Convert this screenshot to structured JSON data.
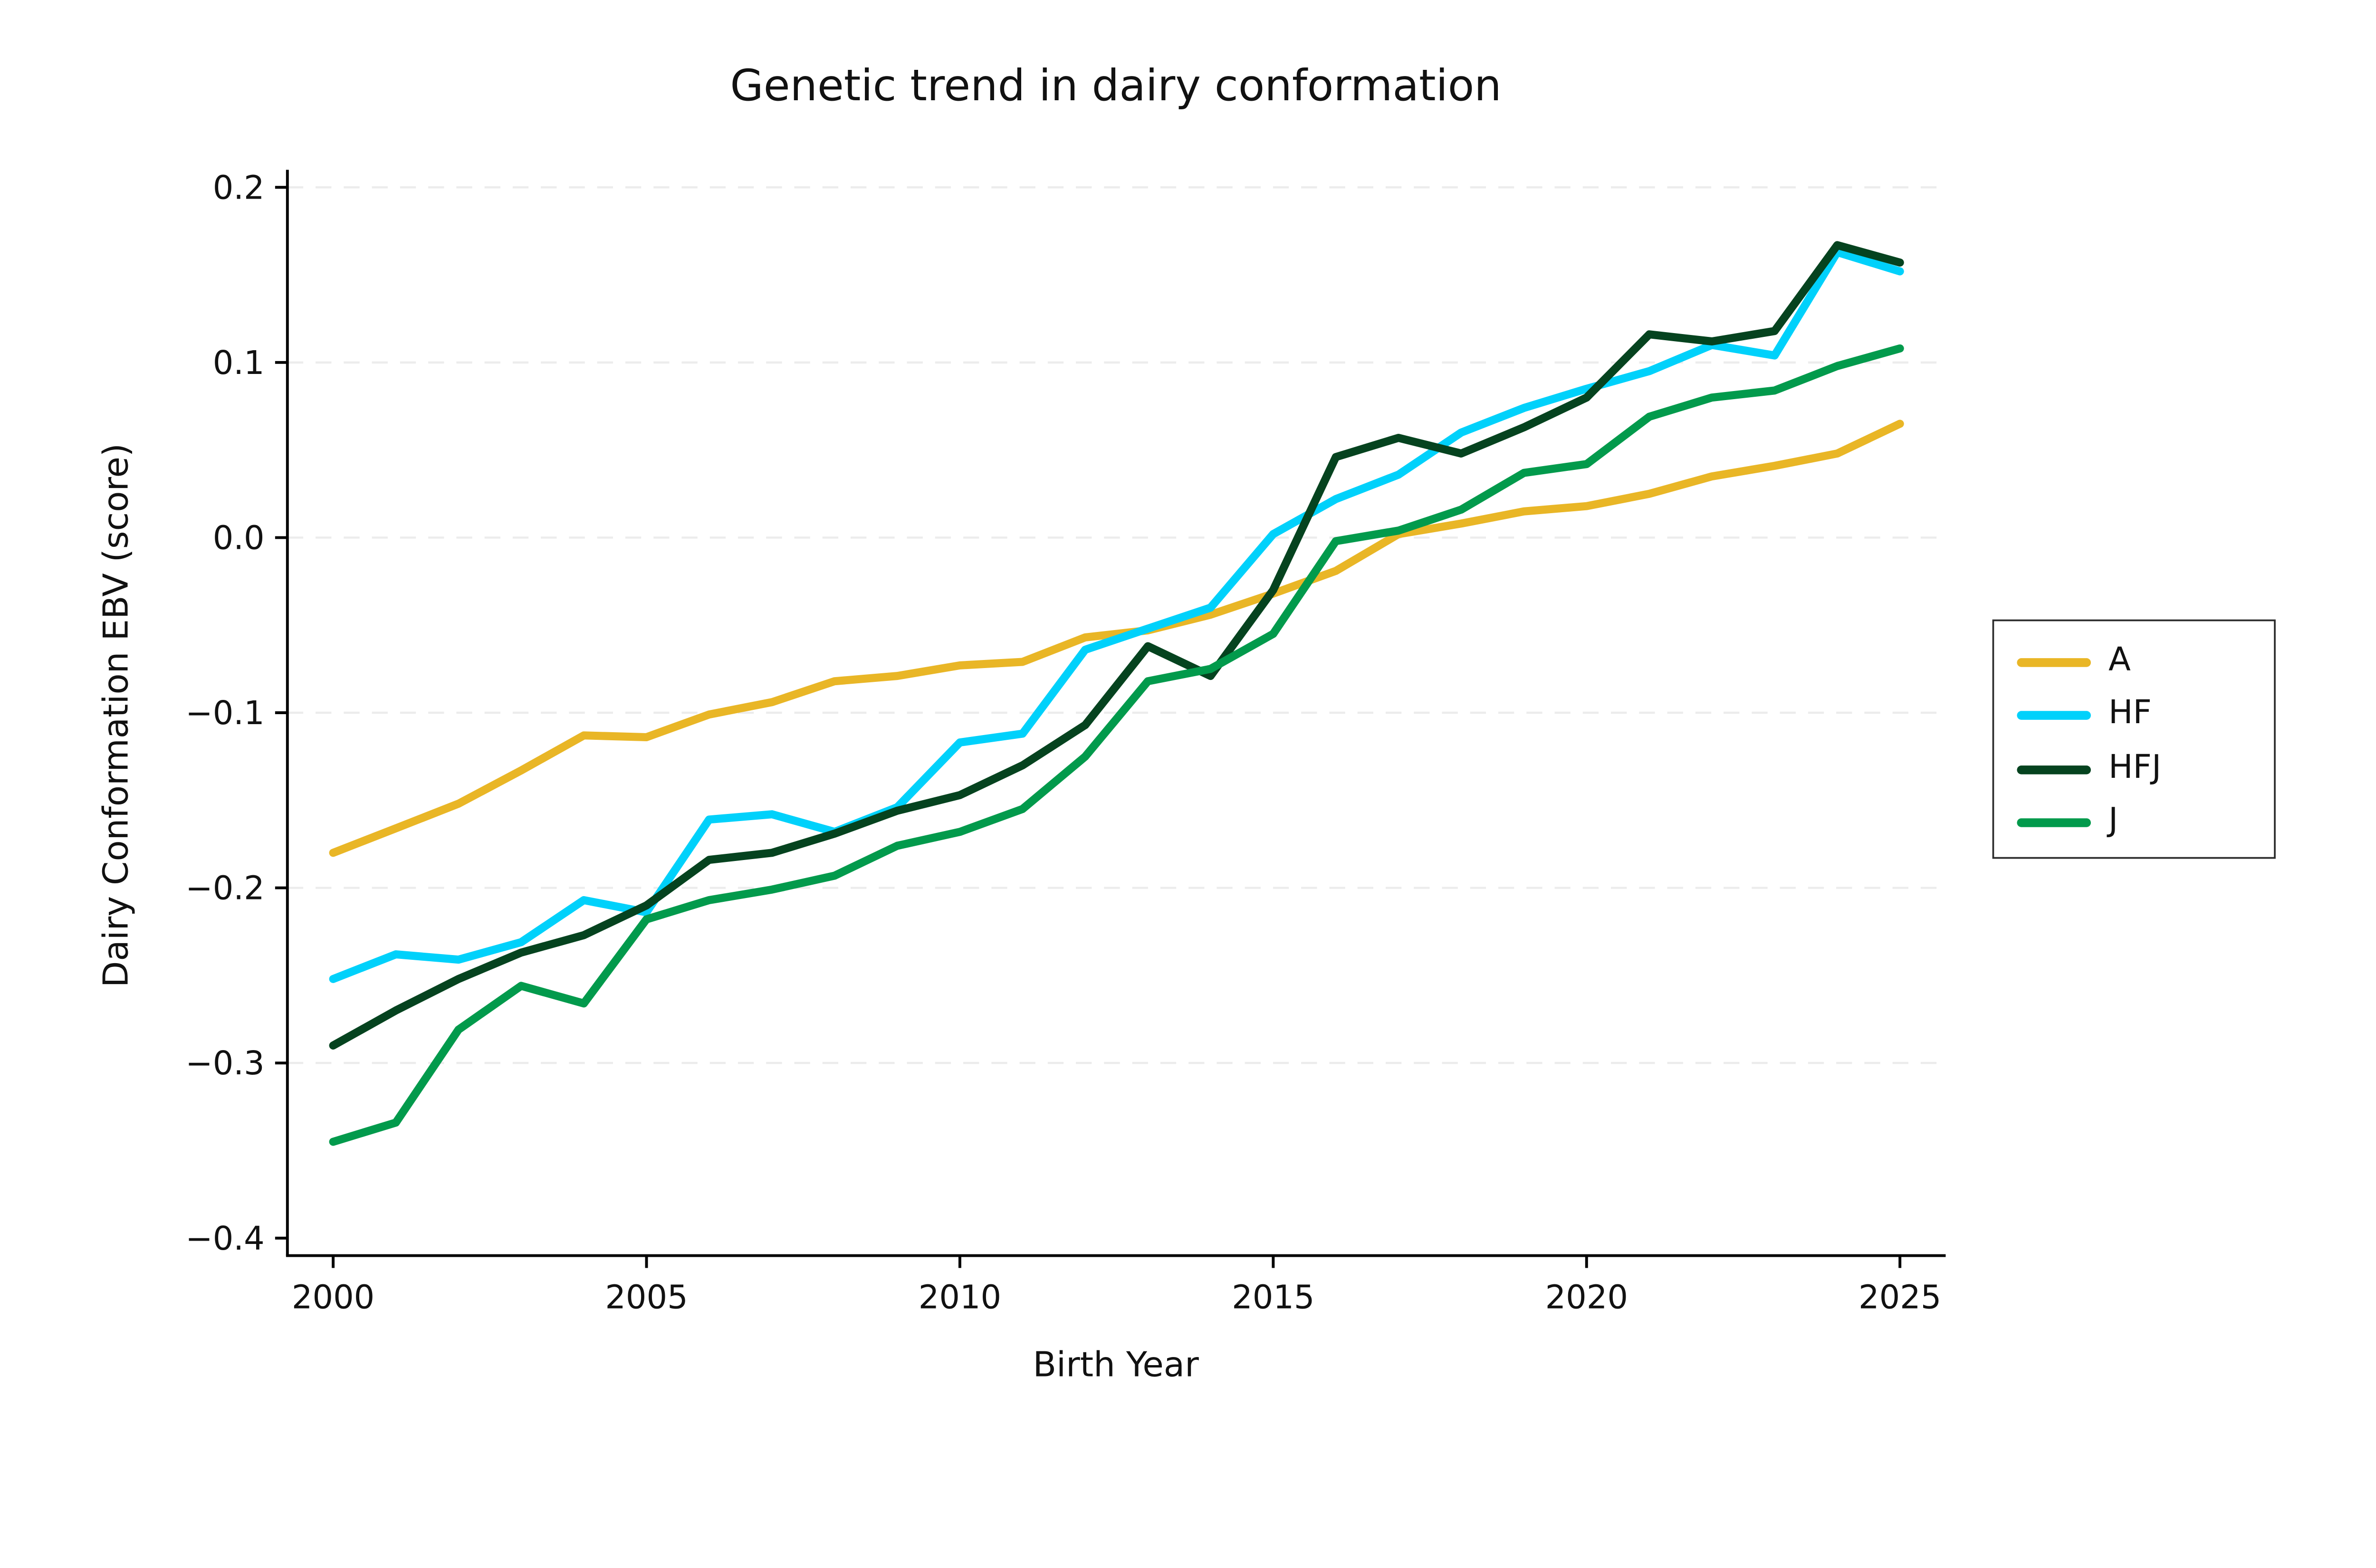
{
  "title": "Genetic trend in dairy conformation",
  "chart_data": {
    "type": "line",
    "title": "Genetic trend in dairy conformation",
    "xlabel": "Birth Year",
    "ylabel": "Dairy Conformation EBV (score)",
    "x": [
      2000,
      2001,
      2002,
      2003,
      2004,
      2005,
      2006,
      2007,
      2008,
      2009,
      2010,
      2011,
      2012,
      2013,
      2014,
      2015,
      2016,
      2017,
      2018,
      2019,
      2020,
      2021,
      2022,
      2023,
      2024,
      2025
    ],
    "series": [
      {
        "name": "A",
        "color": "#E9B626",
        "values": [
          -0.18,
          -0.166,
          -0.152,
          -0.133,
          -0.113,
          -0.114,
          -0.101,
          -0.094,
          -0.082,
          -0.079,
          -0.073,
          -0.071,
          -0.057,
          -0.053,
          -0.044,
          -0.032,
          -0.019,
          0.002,
          0.008,
          0.015,
          0.018,
          0.025,
          0.035,
          0.041,
          0.048,
          0.065
        ]
      },
      {
        "name": "HF",
        "color": "#00D1FB",
        "values": [
          -0.252,
          -0.238,
          -0.241,
          -0.231,
          -0.207,
          -0.214,
          -0.161,
          -0.158,
          -0.168,
          -0.154,
          -0.117,
          -0.112,
          -0.064,
          -0.052,
          -0.04,
          0.002,
          0.022,
          0.036,
          0.06,
          0.074,
          0.085,
          0.095,
          0.11,
          0.104,
          0.163,
          0.152
        ]
      },
      {
        "name": "HFJ",
        "color": "#05431F",
        "values": [
          -0.29,
          -0.27,
          -0.252,
          -0.237,
          -0.227,
          -0.21,
          -0.184,
          -0.18,
          -0.169,
          -0.156,
          -0.147,
          -0.13,
          -0.107,
          -0.062,
          -0.079,
          -0.03,
          0.046,
          0.057,
          0.048,
          0.063,
          0.08,
          0.116,
          0.112,
          0.118,
          0.167,
          0.157
        ]
      },
      {
        "name": "J",
        "color": "#029A4C",
        "values": [
          -0.345,
          -0.334,
          -0.281,
          -0.256,
          -0.266,
          -0.218,
          -0.207,
          -0.201,
          -0.193,
          -0.176,
          -0.168,
          -0.155,
          -0.125,
          -0.082,
          -0.075,
          -0.055,
          -0.002,
          0.004,
          0.016,
          0.037,
          0.042,
          0.069,
          0.08,
          0.084,
          0.098,
          0.108
        ]
      }
    ],
    "xticks": [
      2000,
      2005,
      2010,
      2015,
      2020,
      2025
    ],
    "yticks": [
      "0.2",
      "0.1",
      "0.0",
      "−0.1",
      "−0.2",
      "−0.3",
      "−0.4"
    ],
    "ytick_values": [
      0.2,
      0.1,
      0.0,
      -0.1,
      -0.2,
      -0.3,
      -0.4
    ],
    "xlim": [
      1999.27,
      2025.73
    ],
    "ylim": [
      -0.41,
      0.21
    ],
    "grid": "horizontal-dashed",
    "grid_values": [
      0.2,
      0.1,
      0.0,
      -0.1,
      -0.2,
      -0.3
    ],
    "legend_position": "center-right",
    "legend": [
      "A",
      "HF",
      "HFJ",
      "J"
    ]
  },
  "style": {
    "grid_color": "#ececec",
    "axis_color": "#000000",
    "text_color": "#111111",
    "background": "#ffffff"
  }
}
